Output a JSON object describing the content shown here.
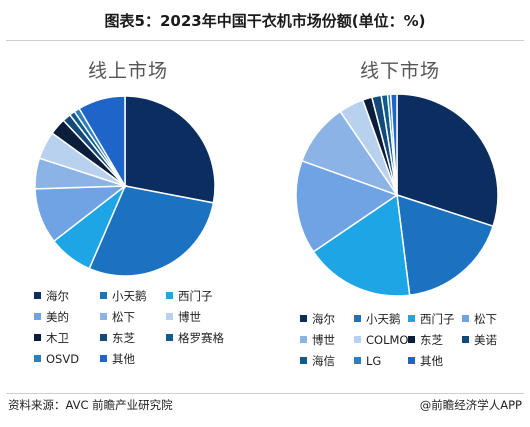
{
  "title": "图表5：2023年中国干衣机市场份额(单位：%)",
  "source": "资料来源：AVC 前瞻产业研究院",
  "brand": "@前瞻经济学人APP",
  "chart_data": [
    {
      "type": "pie",
      "title": "线上市场",
      "slices": [
        {
          "label": "海尔",
          "value": 28.0,
          "color": "#0b2d5f"
        },
        {
          "label": "小天鹅",
          "value": 28.5,
          "color": "#1a72c0"
        },
        {
          "label": "西门子",
          "value": 8.0,
          "color": "#1ea5e6"
        },
        {
          "label": "美的",
          "value": 10.0,
          "color": "#6fa3e3"
        },
        {
          "label": "松下",
          "value": 5.5,
          "color": "#8cb3e6"
        },
        {
          "label": "博世",
          "value": 5.0,
          "color": "#b8d1ef"
        },
        {
          "label": "木卫",
          "value": 3.0,
          "color": "#0a1e3c"
        },
        {
          "label": "东芝",
          "value": 1.5,
          "color": "#14497c"
        },
        {
          "label": "格罗赛格",
          "value": 1.0,
          "color": "#0d5c8c"
        },
        {
          "label": "OSVD",
          "value": 1.0,
          "color": "#2a7fc0"
        },
        {
          "label": "其他",
          "value": 8.5,
          "color": "#1f64c8"
        }
      ],
      "legend_cols": 3
    },
    {
      "type": "pie",
      "title": "线下市场",
      "slices": [
        {
          "label": "海尔",
          "value": 30.0,
          "color": "#0b2d5f"
        },
        {
          "label": "小天鹅",
          "value": 18.0,
          "color": "#1a72c0"
        },
        {
          "label": "西门子",
          "value": 17.5,
          "color": "#1ea5e6"
        },
        {
          "label": "松下",
          "value": 15.0,
          "color": "#6fa3e3"
        },
        {
          "label": "博世",
          "value": 10.0,
          "color": "#8cb3e6"
        },
        {
          "label": "COLMO",
          "value": 4.0,
          "color": "#b8d1ef"
        },
        {
          "label": "东芝",
          "value": 1.5,
          "color": "#0a1e3c"
        },
        {
          "label": "美诺",
          "value": 1.5,
          "color": "#14497c"
        },
        {
          "label": "海信",
          "value": 1.0,
          "color": "#0d5c8c"
        },
        {
          "label": "LG",
          "value": 0.5,
          "color": "#2a7fc0"
        },
        {
          "label": "其他",
          "value": 1.0,
          "color": "#1f64c8"
        }
      ],
      "legend_cols": 4
    }
  ]
}
